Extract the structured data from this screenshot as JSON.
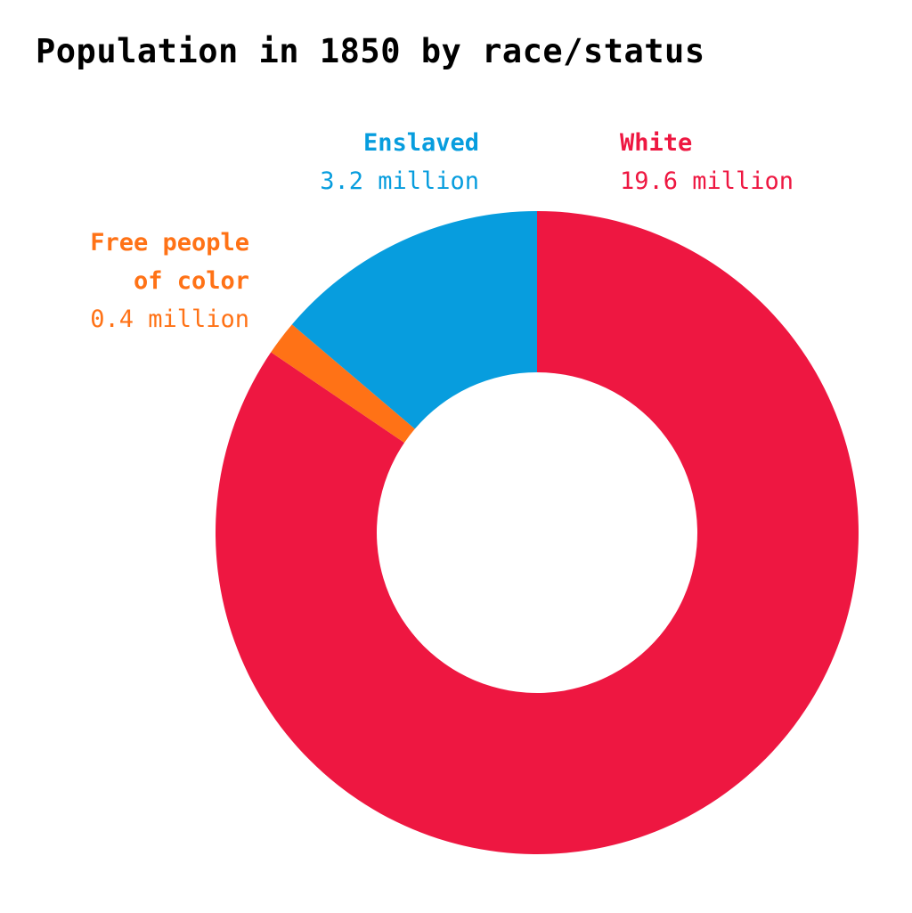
{
  "chart_data": {
    "type": "pie",
    "variant": "donut",
    "title": "Population in 1850 by race/status",
    "unit": "million",
    "start_angle_deg": 0,
    "direction": "clockwise",
    "center": [
      603,
      598
    ],
    "outer_radius": 361,
    "inner_radius": 180,
    "slices": [
      {
        "name": "White",
        "value": 19.6,
        "value_label": "19.6 million",
        "color": "#EE1741"
      },
      {
        "name": "Free people of color",
        "value": 0.4,
        "value_label": "0.4 million",
        "color": "#FF7216"
      },
      {
        "name": "Enslaved",
        "value": 3.2,
        "value_label": "3.2 million",
        "color": "#079DDE"
      }
    ]
  },
  "labels": {
    "enslaved": {
      "name": "Enslaved",
      "value": "3.2 million"
    },
    "white": {
      "name": "White",
      "value": "19.6 million"
    },
    "free": {
      "name": "Free people\n   of color",
      "value": "0.4 million"
    }
  }
}
